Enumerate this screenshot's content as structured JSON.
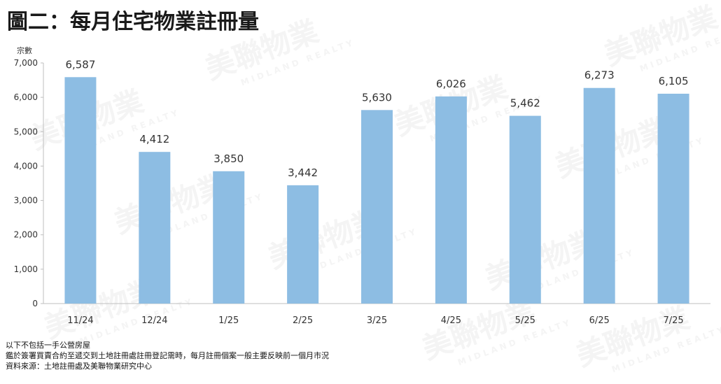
{
  "title": "圖二：每月住宅物業註冊量",
  "watermark": {
    "brand": "美聯物業",
    "sub": "MIDLAND REALTY"
  },
  "notes": [
    "以下不包括一手公營房屋",
    "鑑於簽署買賣合約至遞交到土地註冊處註冊登記需時，每月註冊個案一般主要反映前一個月市況",
    "資料來源：土地註冊處及美聯物業研究中心"
  ],
  "colors": {
    "bar": "#8dbde3",
    "axis": "#bfbfbf",
    "text": "#333333"
  },
  "chart_data": {
    "type": "bar",
    "ylabel": "宗數",
    "categories": [
      "11/24",
      "12/24",
      "1/25",
      "2/25",
      "3/25",
      "4/25",
      "5/25",
      "6/25",
      "7/25"
    ],
    "values": [
      6587,
      4412,
      3850,
      3442,
      5630,
      6026,
      5462,
      6273,
      6105
    ],
    "data_labels": [
      "6,587",
      "4,412",
      "3,850",
      "3,442",
      "5,630",
      "6,026",
      "5,462",
      "6,273",
      "6,105"
    ],
    "yticks": [
      "0",
      "1,000",
      "2,000",
      "3,000",
      "4,000",
      "5,000",
      "6,000",
      "7,000"
    ],
    "ylim": [
      0,
      7000
    ],
    "grid": false
  }
}
